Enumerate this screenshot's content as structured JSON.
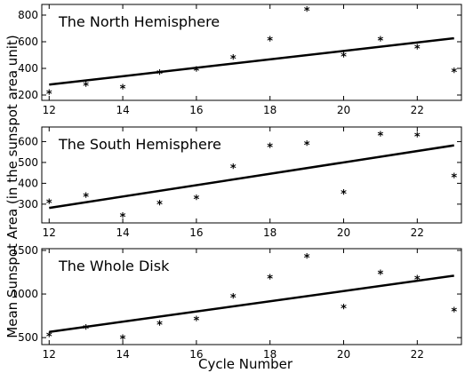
{
  "figure": {
    "xlabel": "Cycle Number",
    "ylabel": "Mean Sunspot Area (in the sunspot area unit)",
    "line_color": "#000000",
    "marker": "*"
  },
  "chart_data": [
    {
      "type": "scatter",
      "title": "The North Hemisphere",
      "x": [
        12,
        13,
        14,
        15,
        16,
        17,
        18,
        19,
        20,
        21,
        22,
        23
      ],
      "y": [
        210,
        270,
        250,
        360,
        385,
        475,
        610,
        835,
        490,
        610,
        550,
        375
      ],
      "fit_line": {
        "x": [
          12,
          23
        ],
        "y": [
          278,
          626
        ]
      },
      "xlim": [
        11.8,
        23.2
      ],
      "ylim": [
        160,
        880
      ],
      "xticks": [
        12,
        14,
        16,
        18,
        20,
        22
      ],
      "yticks": [
        200,
        400,
        600,
        800
      ],
      "grid": false
    },
    {
      "type": "scatter",
      "title": "The South Hemisphere",
      "x": [
        12,
        13,
        14,
        15,
        16,
        17,
        18,
        19,
        20,
        21,
        22,
        23
      ],
      "y": [
        305,
        335,
        240,
        300,
        325,
        475,
        575,
        585,
        350,
        630,
        625,
        430
      ],
      "fit_line": {
        "x": [
          12,
          23
        ],
        "y": [
          282,
          582
        ]
      },
      "xlim": [
        11.8,
        23.2
      ],
      "ylim": [
        210,
        670
      ],
      "xticks": [
        12,
        14,
        16,
        18,
        20,
        22
      ],
      "yticks": [
        300,
        400,
        500,
        600
      ],
      "grid": false
    },
    {
      "type": "scatter",
      "title": "The Whole Disk",
      "x": [
        12,
        13,
        14,
        15,
        16,
        17,
        18,
        19,
        20,
        21,
        22,
        23
      ],
      "y": [
        515,
        605,
        485,
        650,
        700,
        960,
        1180,
        1420,
        840,
        1230,
        1170,
        800
      ],
      "fit_line": {
        "x": [
          12,
          23
        ],
        "y": [
          565,
          1210
        ]
      },
      "xlim": [
        11.8,
        23.2
      ],
      "ylim": [
        420,
        1520
      ],
      "xticks": [
        12,
        14,
        16,
        18,
        20,
        22
      ],
      "yticks": [
        500,
        1000,
        1500
      ],
      "grid": false
    }
  ]
}
